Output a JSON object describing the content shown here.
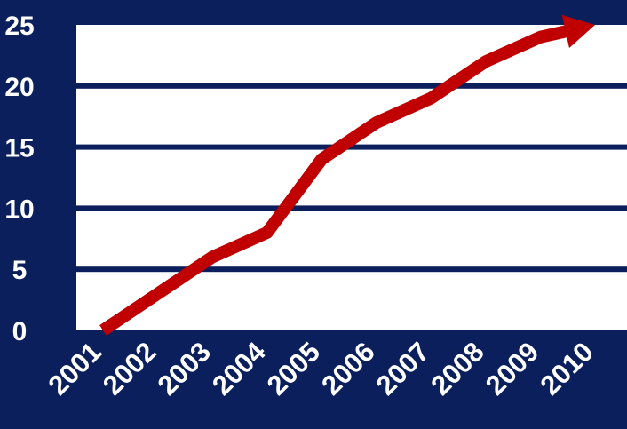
{
  "chart_data": {
    "type": "line",
    "title": "",
    "xlabel": "",
    "ylabel": "",
    "x": [
      "2001",
      "2002",
      "2003",
      "2004",
      "2005",
      "2006",
      "2007",
      "2008",
      "2009",
      "2010"
    ],
    "series": [
      {
        "values": [
          0,
          3,
          6,
          8,
          14,
          17,
          19,
          22,
          24,
          25
        ]
      }
    ],
    "ylim": [
      0,
      25
    ],
    "yticks": [
      "0",
      "5",
      "10",
      "15",
      "20",
      "25"
    ],
    "grid": true,
    "line_end": "arrow",
    "colors": {
      "background": "#0a1f5c",
      "plot_area": "#ffffff",
      "gridline": "#0a1f5c",
      "line": "#c00000",
      "text": "#ffffff"
    }
  }
}
